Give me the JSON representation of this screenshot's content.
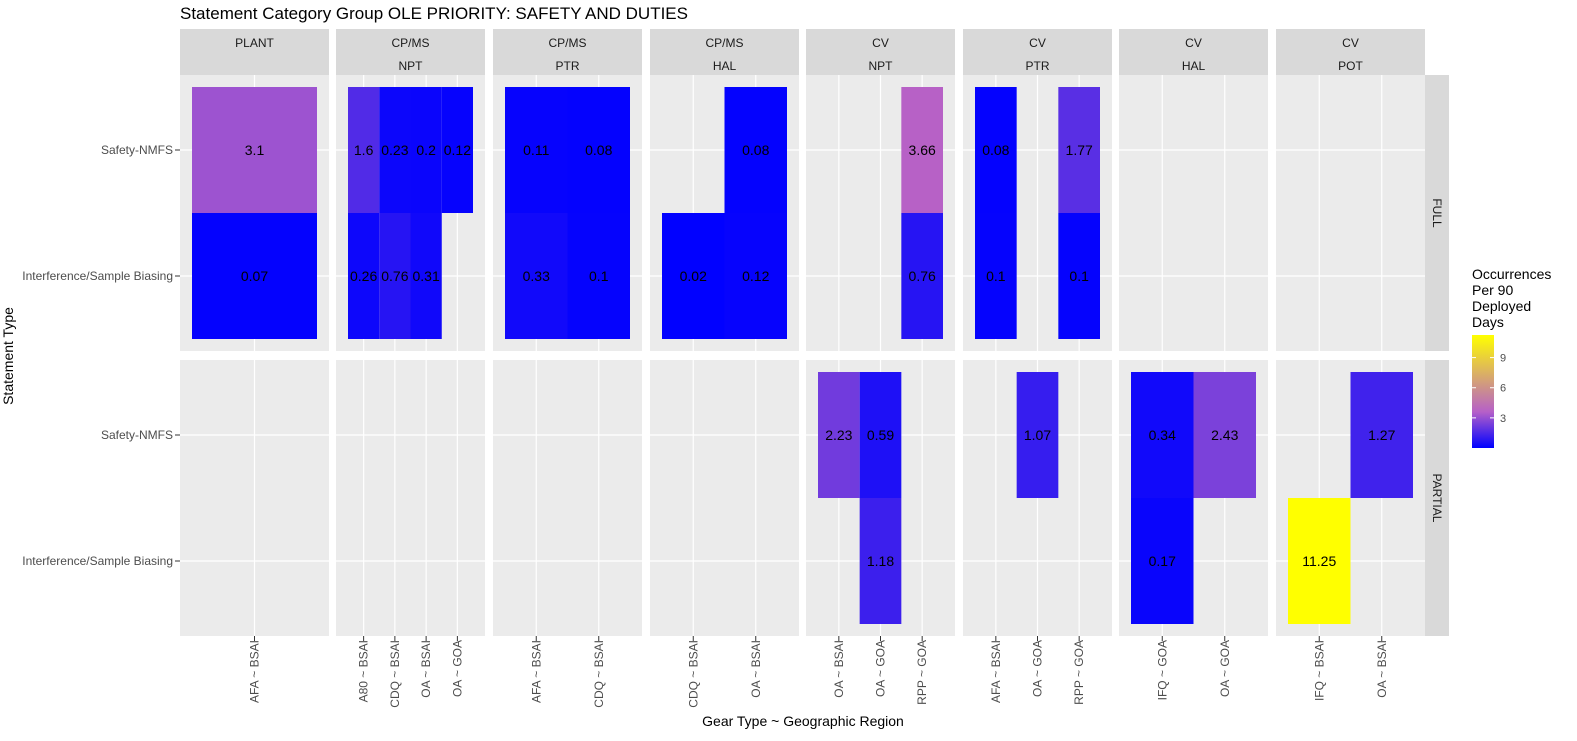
{
  "chart_data": {
    "type": "heatmap",
    "title": "Statement Category Group OLE PRIORITY: SAFETY AND DUTIES",
    "xlabel": "Gear Type ~ Geographic Region",
    "ylabel": "Statement Type",
    "y_categories": [
      "Safety-NMFS",
      "Interference/Sample Biasing"
    ],
    "row_facets": [
      "FULL",
      "PARTIAL"
    ],
    "column_facets": [
      {
        "top": "PLANT",
        "bottom": "",
        "x": [
          "AFA ~ BSAI"
        ]
      },
      {
        "top": "CP/MS",
        "bottom": "NPT",
        "x": [
          "A80 ~ BSAI",
          "CDQ ~ BSAI",
          "OA ~ BSAI",
          "OA ~ GOA"
        ]
      },
      {
        "top": "CP/MS",
        "bottom": "PTR",
        "x": [
          "AFA ~ BSAI",
          "CDQ ~ BSAI"
        ]
      },
      {
        "top": "CP/MS",
        "bottom": "HAL",
        "x": [
          "CDQ ~ BSAI",
          "OA ~ BSAI"
        ]
      },
      {
        "top": "CV",
        "bottom": "NPT",
        "x": [
          "OA ~ BSAI",
          "OA ~ GOA",
          "RPP ~ GOA"
        ]
      },
      {
        "top": "CV",
        "bottom": "PTR",
        "x": [
          "AFA ~ BSAI",
          "OA ~ GOA",
          "RPP ~ GOA"
        ]
      },
      {
        "top": "CV",
        "bottom": "HAL",
        "x": [
          "IFQ ~ GOA",
          "OA ~ GOA"
        ]
      },
      {
        "top": "CV",
        "bottom": "POT",
        "x": [
          "IFQ ~ BSAI",
          "OA ~ BSAI"
        ]
      }
    ],
    "cells": [
      {
        "row": 0,
        "col": 0,
        "x": 0,
        "y": 0,
        "value": 3.1,
        "label": "3.1"
      },
      {
        "row": 0,
        "col": 0,
        "x": 0,
        "y": 1,
        "value": 0.07,
        "label": "0.07"
      },
      {
        "row": 0,
        "col": 1,
        "x": 0,
        "y": 0,
        "value": 1.6,
        "label": "1.6"
      },
      {
        "row": 0,
        "col": 1,
        "x": 1,
        "y": 0,
        "value": 0.23,
        "label": "0.23"
      },
      {
        "row": 0,
        "col": 1,
        "x": 2,
        "y": 0,
        "value": 0.2,
        "label": "0.2"
      },
      {
        "row": 0,
        "col": 1,
        "x": 3,
        "y": 0,
        "value": 0.12,
        "label": "0.12"
      },
      {
        "row": 0,
        "col": 1,
        "x": 0,
        "y": 1,
        "value": 0.26,
        "label": "0.26"
      },
      {
        "row": 0,
        "col": 1,
        "x": 1,
        "y": 1,
        "value": 0.76,
        "label": "0.76"
      },
      {
        "row": 0,
        "col": 1,
        "x": 2,
        "y": 1,
        "value": 0.31,
        "label": "0.31"
      },
      {
        "row": 0,
        "col": 2,
        "x": 0,
        "y": 0,
        "value": 0.11,
        "label": "0.11"
      },
      {
        "row": 0,
        "col": 2,
        "x": 1,
        "y": 0,
        "value": 0.08,
        "label": "0.08"
      },
      {
        "row": 0,
        "col": 2,
        "x": 0,
        "y": 1,
        "value": 0.33,
        "label": "0.33"
      },
      {
        "row": 0,
        "col": 2,
        "x": 1,
        "y": 1,
        "value": 0.1,
        "label": "0.1"
      },
      {
        "row": 0,
        "col": 3,
        "x": 1,
        "y": 0,
        "value": 0.08,
        "label": "0.08"
      },
      {
        "row": 0,
        "col": 3,
        "x": 0,
        "y": 1,
        "value": 0.02,
        "label": "0.02"
      },
      {
        "row": 0,
        "col": 3,
        "x": 1,
        "y": 1,
        "value": 0.12,
        "label": "0.12"
      },
      {
        "row": 0,
        "col": 4,
        "x": 2,
        "y": 0,
        "value": 3.66,
        "label": "3.66"
      },
      {
        "row": 0,
        "col": 4,
        "x": 2,
        "y": 1,
        "value": 0.76,
        "label": "0.76"
      },
      {
        "row": 0,
        "col": 5,
        "x": 0,
        "y": 0,
        "value": 0.08,
        "label": "0.08"
      },
      {
        "row": 0,
        "col": 5,
        "x": 2,
        "y": 0,
        "value": 1.77,
        "label": "1.77"
      },
      {
        "row": 0,
        "col": 5,
        "x": 0,
        "y": 1,
        "value": 0.1,
        "label": "0.1"
      },
      {
        "row": 0,
        "col": 5,
        "x": 2,
        "y": 1,
        "value": 0.1,
        "label": "0.1"
      },
      {
        "row": 1,
        "col": 4,
        "x": 0,
        "y": 0,
        "value": 2.23,
        "label": "2.23"
      },
      {
        "row": 1,
        "col": 4,
        "x": 1,
        "y": 0,
        "value": 0.59,
        "label": "0.59"
      },
      {
        "row": 1,
        "col": 4,
        "x": 1,
        "y": 1,
        "value": 1.18,
        "label": "1.18"
      },
      {
        "row": 1,
        "col": 5,
        "x": 1,
        "y": 0,
        "value": 1.07,
        "label": "1.07"
      },
      {
        "row": 1,
        "col": 6,
        "x": 0,
        "y": 0,
        "value": 0.34,
        "label": "0.34"
      },
      {
        "row": 1,
        "col": 6,
        "x": 1,
        "y": 0,
        "value": 2.43,
        "label": "2.43"
      },
      {
        "row": 1,
        "col": 6,
        "x": 0,
        "y": 1,
        "value": 0.17,
        "label": "0.17"
      },
      {
        "row": 1,
        "col": 7,
        "x": 1,
        "y": 0,
        "value": 1.27,
        "label": "1.27"
      },
      {
        "row": 1,
        "col": 7,
        "x": 0,
        "y": 1,
        "value": 11.25,
        "label": "11.25"
      }
    ],
    "legend": {
      "title_lines": [
        "Occurrences",
        "Per 90",
        "Deployed",
        "Days"
      ],
      "ticks": [
        3,
        6,
        9
      ],
      "tick_labels": [
        "3",
        "6",
        "9"
      ],
      "range": [
        0,
        11.25
      ],
      "placement": "right"
    },
    "color_scale": {
      "stops": [
        {
          "value": 0,
          "color": "#0000ff"
        },
        {
          "value": 3.6,
          "color": "#b660c8"
        },
        {
          "value": 11.25,
          "color": "#ffff00"
        }
      ]
    },
    "grid": true,
    "panel_background": "#ebebeb",
    "strip_background": "#d9d9d9"
  }
}
